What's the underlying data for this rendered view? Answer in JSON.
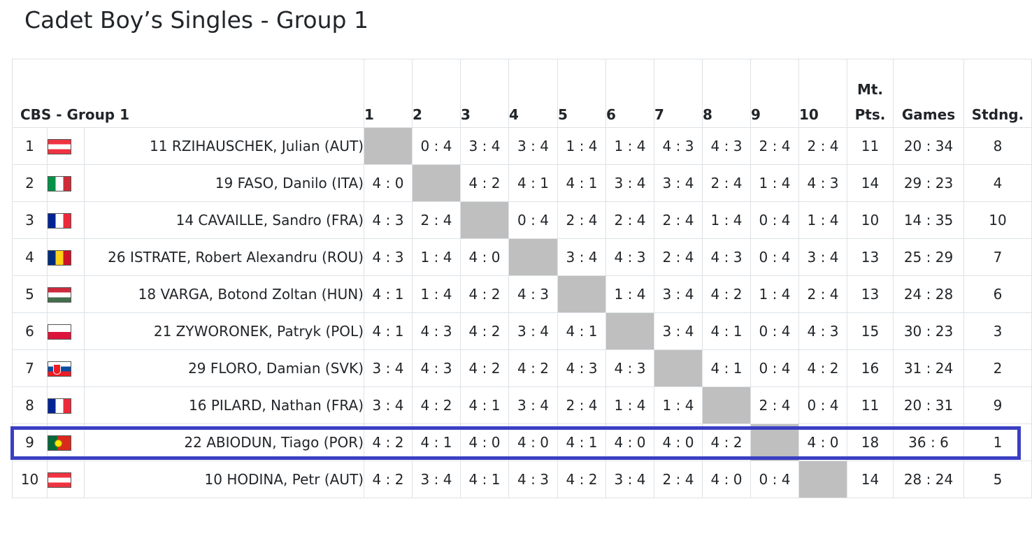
{
  "page": {
    "title": "Cadet Boy’s Singles - Group 1"
  },
  "table": {
    "group_header": "CBS - Group 1",
    "column_numbers": [
      "1",
      "2",
      "3",
      "4",
      "5",
      "6",
      "7",
      "8",
      "9",
      "10"
    ],
    "pts_header_line1": "Mt.",
    "pts_header_line2": "Pts.",
    "games_header": "Games",
    "standing_header": "Stdng.",
    "rows": [
      {
        "rank": "1",
        "flag": "AUT",
        "player": "11 RZIHAUSCHEK, Julian (AUT)",
        "results": [
          "",
          "0 : 4",
          "3 : 4",
          "3 : 4",
          "1 : 4",
          "1 : 4",
          "4 : 3",
          "4 : 3",
          "2 : 4",
          "2 : 4"
        ],
        "points": "11",
        "games": "20 : 34",
        "standing": "8"
      },
      {
        "rank": "2",
        "flag": "ITA",
        "player": "19 FASO, Danilo (ITA)",
        "results": [
          "4 : 0",
          "",
          "4 : 2",
          "4 : 1",
          "4 : 1",
          "3 : 4",
          "3 : 4",
          "2 : 4",
          "1 : 4",
          "4 : 3"
        ],
        "points": "14",
        "games": "29 : 23",
        "standing": "4"
      },
      {
        "rank": "3",
        "flag": "FRA",
        "player": "14 CAVAILLE, Sandro (FRA)",
        "results": [
          "4 : 3",
          "2 : 4",
          "",
          "0 : 4",
          "2 : 4",
          "2 : 4",
          "2 : 4",
          "1 : 4",
          "0 : 4",
          "1 : 4"
        ],
        "points": "10",
        "games": "14 : 35",
        "standing": "10"
      },
      {
        "rank": "4",
        "flag": "ROU",
        "player": "26 ISTRATE, Robert Alexandru (ROU)",
        "results": [
          "4 : 3",
          "1 : 4",
          "4 : 0",
          "",
          "3 : 4",
          "4 : 3",
          "2 : 4",
          "4 : 3",
          "0 : 4",
          "3 : 4"
        ],
        "points": "13",
        "games": "25 : 29",
        "standing": "7"
      },
      {
        "rank": "5",
        "flag": "HUN",
        "player": "18 VARGA, Botond Zoltan (HUN)",
        "results": [
          "4 : 1",
          "1 : 4",
          "4 : 2",
          "4 : 3",
          "",
          "1 : 4",
          "3 : 4",
          "4 : 2",
          "1 : 4",
          "2 : 4"
        ],
        "points": "13",
        "games": "24 : 28",
        "standing": "6"
      },
      {
        "rank": "6",
        "flag": "POL",
        "player": "21 ZYWORONEK, Patryk (POL)",
        "results": [
          "4 : 1",
          "4 : 3",
          "4 : 2",
          "3 : 4",
          "4 : 1",
          "",
          "3 : 4",
          "4 : 1",
          "0 : 4",
          "4 : 3"
        ],
        "points": "15",
        "games": "30 : 23",
        "standing": "3"
      },
      {
        "rank": "7",
        "flag": "SVK",
        "player": "29 FLORO, Damian (SVK)",
        "results": [
          "3 : 4",
          "4 : 3",
          "4 : 2",
          "4 : 2",
          "4 : 3",
          "4 : 3",
          "",
          "4 : 1",
          "0 : 4",
          "4 : 2"
        ],
        "points": "16",
        "games": "31 : 24",
        "standing": "2"
      },
      {
        "rank": "8",
        "flag": "FRA",
        "player": "16 PILARD, Nathan (FRA)",
        "results": [
          "3 : 4",
          "4 : 2",
          "4 : 1",
          "3 : 4",
          "2 : 4",
          "1 : 4",
          "1 : 4",
          "",
          "2 : 4",
          "0 : 4"
        ],
        "points": "11",
        "games": "20 : 31",
        "standing": "9"
      },
      {
        "rank": "9",
        "flag": "POR",
        "player": "22 ABIODUN, Tiago (POR)",
        "results": [
          "4 : 2",
          "4 : 1",
          "4 : 0",
          "4 : 0",
          "4 : 1",
          "4 : 0",
          "4 : 0",
          "4 : 2",
          "",
          "4 : 0"
        ],
        "points": "18",
        "games": "36 : 6",
        "standing": "1",
        "highlighted": true
      },
      {
        "rank": "10",
        "flag": "AUT",
        "player": "10 HODINA, Petr (AUT)",
        "results": [
          "4 : 2",
          "3 : 4",
          "4 : 1",
          "4 : 3",
          "4 : 2",
          "3 : 4",
          "2 : 4",
          "4 : 0",
          "0 : 4",
          ""
        ],
        "points": "14",
        "games": "28 : 24",
        "standing": "5"
      }
    ]
  },
  "colors": {
    "self_cell": "#bfbfbf",
    "highlight_border": "#3a3fc2",
    "grid_border": "#dee2e6"
  }
}
